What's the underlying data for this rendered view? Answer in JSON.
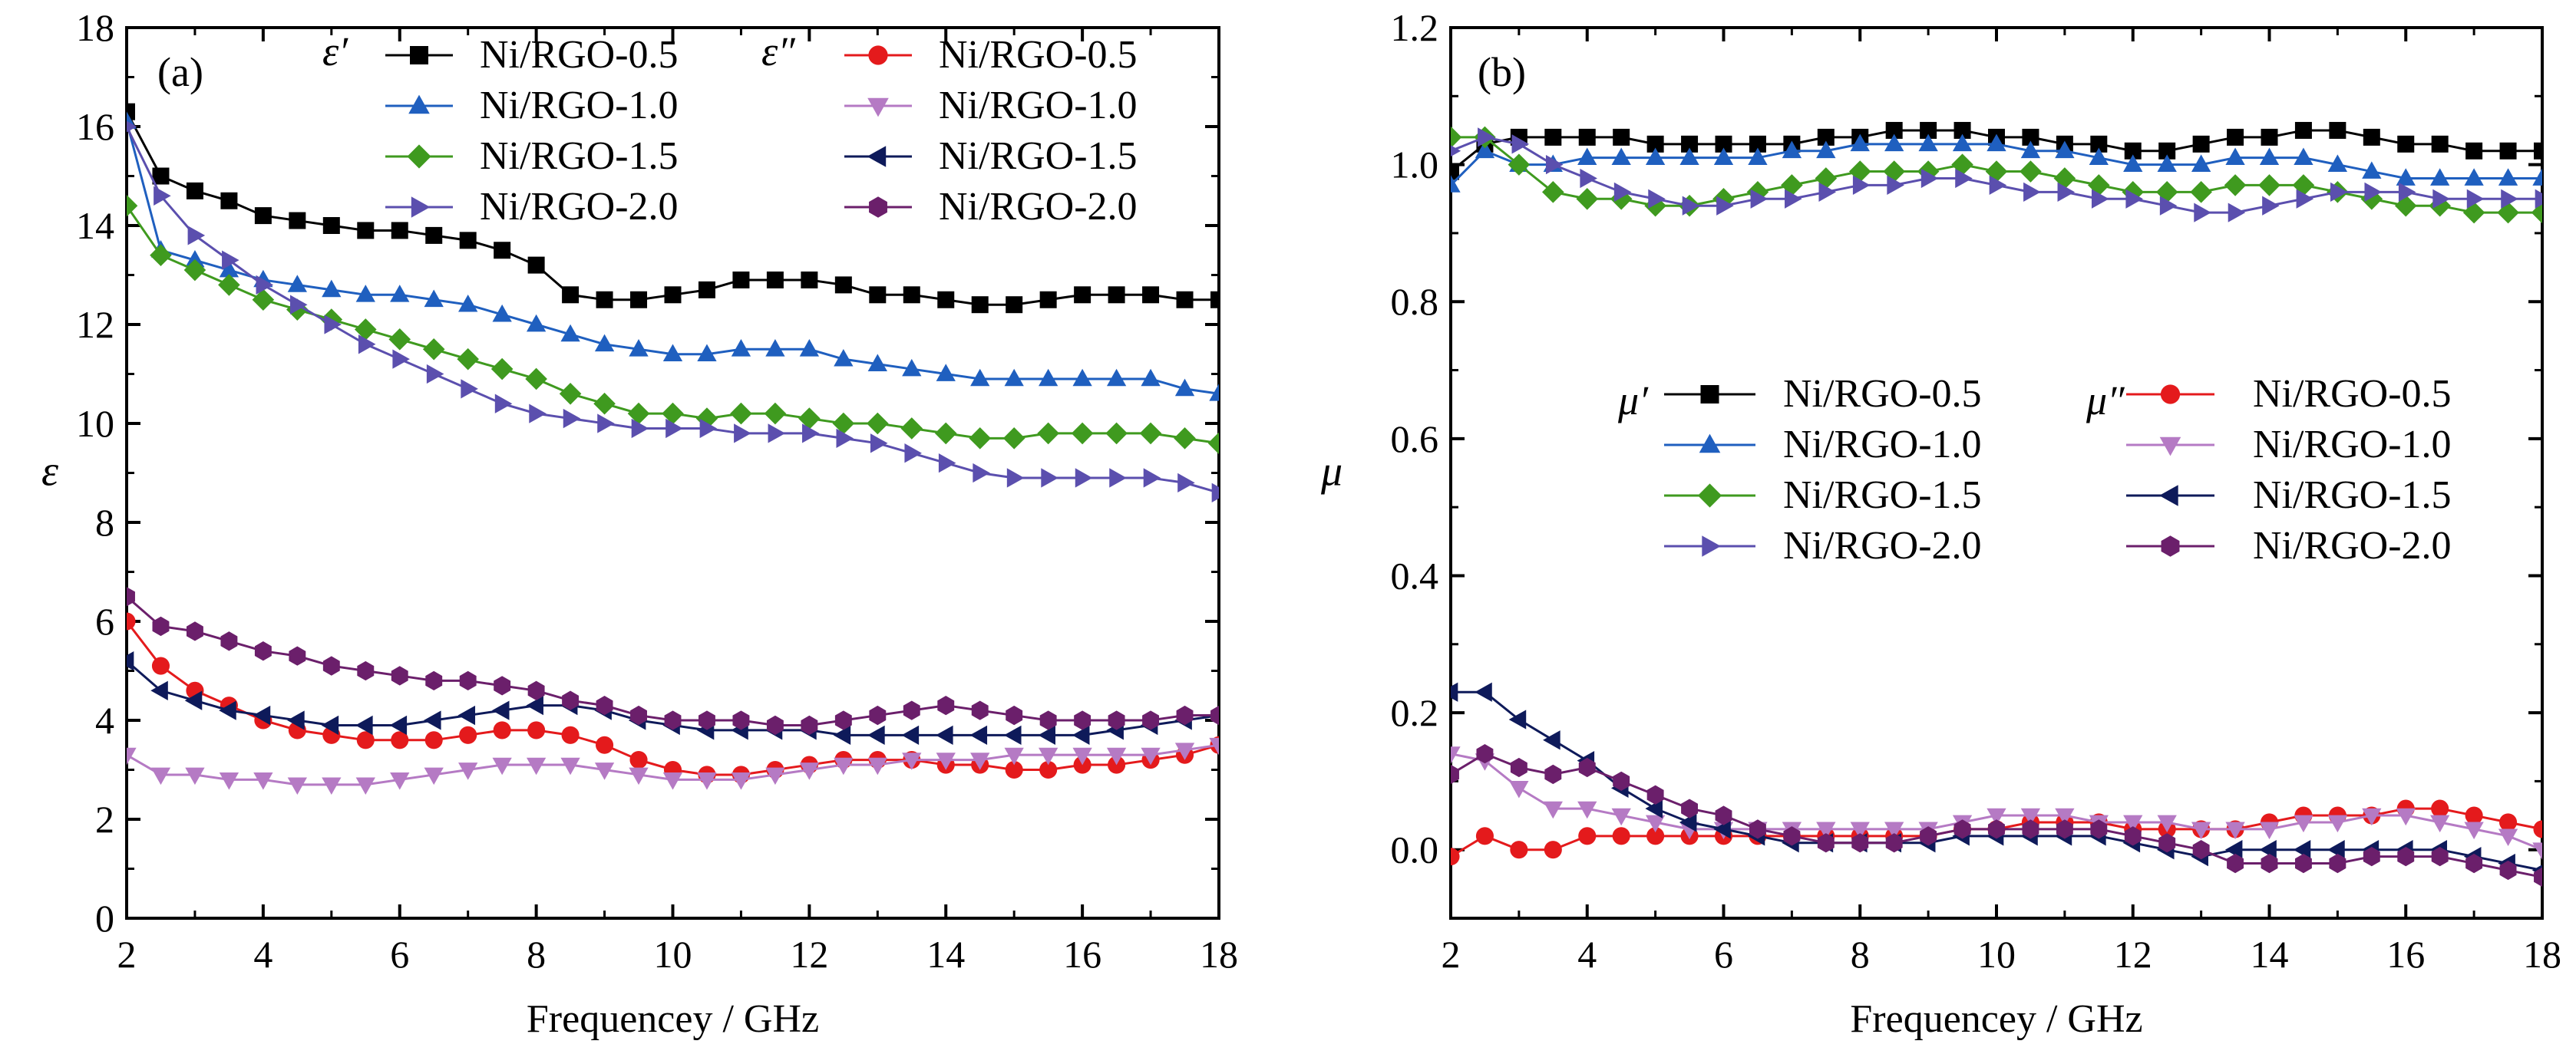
{
  "chart_data": [
    {
      "type": "line",
      "panel_label": "(a)",
      "xlabel": "Frequencey / GHz",
      "ylabel": "ε",
      "xlim": [
        2,
        18
      ],
      "ylim": [
        0,
        18
      ],
      "xticks": [
        2,
        4,
        6,
        8,
        10,
        12,
        14,
        16,
        18
      ],
      "yticks": [
        0,
        2,
        4,
        6,
        8,
        10,
        12,
        14,
        16,
        18
      ],
      "xtick_labels": [
        "2",
        "4",
        "6",
        "8",
        "10",
        "12",
        "14",
        "16",
        "18"
      ],
      "ytick_labels": [
        "0",
        "2",
        "4",
        "6",
        "8",
        "10",
        "12",
        "14",
        "16",
        "18"
      ],
      "legend_groups": [
        {
          "symbol": "ε′",
          "entries": [
            0,
            1,
            2,
            3
          ]
        },
        {
          "symbol": "ε″",
          "entries": [
            4,
            5,
            6,
            7
          ]
        }
      ],
      "x": [
        2.0,
        2.5,
        3.0,
        3.5,
        4.0,
        4.5,
        5.0,
        5.5,
        6.0,
        6.5,
        7.0,
        7.5,
        8.0,
        8.5,
        9.0,
        9.5,
        10.0,
        10.5,
        11.0,
        11.5,
        12.0,
        12.5,
        13.0,
        13.5,
        14.0,
        14.5,
        15.0,
        15.5,
        16.0,
        16.5,
        17.0,
        17.5,
        18.0
      ],
      "series": [
        {
          "name": "Ni/RGO-0.5",
          "marker": "square",
          "color": "#000000",
          "values": [
            16.3,
            15.0,
            14.7,
            14.5,
            14.2,
            14.1,
            14.0,
            13.9,
            13.9,
            13.8,
            13.7,
            13.5,
            13.2,
            12.6,
            12.5,
            12.5,
            12.6,
            12.7,
            12.9,
            12.9,
            12.9,
            12.8,
            12.6,
            12.6,
            12.5,
            12.4,
            12.4,
            12.5,
            12.6,
            12.6,
            12.6,
            12.5,
            12.5
          ]
        },
        {
          "name": "Ni/RGO-1.0",
          "marker": "triangle-up",
          "color": "#1f5fbf",
          "values": [
            16.1,
            13.5,
            13.3,
            13.1,
            12.9,
            12.8,
            12.7,
            12.6,
            12.6,
            12.5,
            12.4,
            12.2,
            12.0,
            11.8,
            11.6,
            11.5,
            11.4,
            11.4,
            11.5,
            11.5,
            11.5,
            11.3,
            11.2,
            11.1,
            11.0,
            10.9,
            10.9,
            10.9,
            10.9,
            10.9,
            10.9,
            10.7,
            10.6
          ]
        },
        {
          "name": "Ni/RGO-1.5",
          "marker": "diamond",
          "color": "#3f9a1f",
          "values": [
            14.4,
            13.4,
            13.1,
            12.8,
            12.5,
            12.3,
            12.1,
            11.9,
            11.7,
            11.5,
            11.3,
            11.1,
            10.9,
            10.6,
            10.4,
            10.2,
            10.2,
            10.1,
            10.2,
            10.2,
            10.1,
            10.0,
            10.0,
            9.9,
            9.8,
            9.7,
            9.7,
            9.8,
            9.8,
            9.8,
            9.8,
            9.7,
            9.6
          ]
        },
        {
          "name": "Ni/RGO-2.0",
          "marker": "triangle-right",
          "color": "#5b4fae",
          "values": [
            16.0,
            14.6,
            13.8,
            13.3,
            12.8,
            12.4,
            12.0,
            11.6,
            11.3,
            11.0,
            10.7,
            10.4,
            10.2,
            10.1,
            10.0,
            9.9,
            9.9,
            9.9,
            9.8,
            9.8,
            9.8,
            9.7,
            9.6,
            9.4,
            9.2,
            9.0,
            8.9,
            8.9,
            8.9,
            8.9,
            8.9,
            8.8,
            8.6
          ]
        },
        {
          "name": "Ni/RGO-0.5",
          "marker": "circle",
          "color": "#e41a1c",
          "values": [
            6.0,
            5.1,
            4.6,
            4.3,
            4.0,
            3.8,
            3.7,
            3.6,
            3.6,
            3.6,
            3.7,
            3.8,
            3.8,
            3.7,
            3.5,
            3.2,
            3.0,
            2.9,
            2.9,
            3.0,
            3.1,
            3.2,
            3.2,
            3.2,
            3.1,
            3.1,
            3.0,
            3.0,
            3.1,
            3.1,
            3.2,
            3.3,
            3.5
          ]
        },
        {
          "name": "Ni/RGO-1.0",
          "marker": "triangle-down",
          "color": "#b57ac4",
          "values": [
            3.3,
            2.9,
            2.9,
            2.8,
            2.8,
            2.7,
            2.7,
            2.7,
            2.8,
            2.9,
            3.0,
            3.1,
            3.1,
            3.1,
            3.0,
            2.9,
            2.8,
            2.8,
            2.8,
            2.9,
            3.0,
            3.1,
            3.1,
            3.2,
            3.2,
            3.2,
            3.3,
            3.3,
            3.3,
            3.3,
            3.3,
            3.4,
            3.5
          ]
        },
        {
          "name": "Ni/RGO-1.5",
          "marker": "triangle-left",
          "color": "#0e1a5a",
          "values": [
            5.2,
            4.6,
            4.4,
            4.2,
            4.1,
            4.0,
            3.9,
            3.9,
            3.9,
            4.0,
            4.1,
            4.2,
            4.3,
            4.3,
            4.2,
            4.0,
            3.9,
            3.8,
            3.8,
            3.8,
            3.8,
            3.7,
            3.7,
            3.7,
            3.7,
            3.7,
            3.7,
            3.7,
            3.7,
            3.8,
            3.9,
            4.0,
            4.1
          ]
        },
        {
          "name": "Ni/RGO-2.0",
          "marker": "hexagon",
          "color": "#6b1f6b",
          "values": [
            6.5,
            5.9,
            5.8,
            5.6,
            5.4,
            5.3,
            5.1,
            5.0,
            4.9,
            4.8,
            4.8,
            4.7,
            4.6,
            4.4,
            4.3,
            4.1,
            4.0,
            4.0,
            4.0,
            3.9,
            3.9,
            4.0,
            4.1,
            4.2,
            4.3,
            4.2,
            4.1,
            4.0,
            4.0,
            4.0,
            4.0,
            4.1,
            4.1
          ]
        }
      ]
    },
    {
      "type": "line",
      "panel_label": "(b)",
      "xlabel": "Frequencey / GHz",
      "ylabel": "μ",
      "xlim": [
        2,
        18
      ],
      "ylim": [
        -0.1,
        1.2
      ],
      "xticks": [
        2,
        4,
        6,
        8,
        10,
        12,
        14,
        16,
        18
      ],
      "yticks": [
        0,
        0.2,
        0.4,
        0.6,
        0.8,
        1.0,
        1.2
      ],
      "xtick_labels": [
        "2",
        "4",
        "6",
        "8",
        "10",
        "12",
        "14",
        "16",
        "18"
      ],
      "ytick_labels": [
        "0.0",
        "0.2",
        "0.4",
        "0.6",
        "0.8",
        "1.0",
        "1.2"
      ],
      "legend_groups": [
        {
          "symbol": "μ′",
          "entries": [
            0,
            1,
            2,
            3
          ]
        },
        {
          "symbol": "μ″",
          "entries": [
            4,
            5,
            6,
            7
          ]
        }
      ],
      "x": [
        2.0,
        2.5,
        3.0,
        3.5,
        4.0,
        4.5,
        5.0,
        5.5,
        6.0,
        6.5,
        7.0,
        7.5,
        8.0,
        8.5,
        9.0,
        9.5,
        10.0,
        10.5,
        11.0,
        11.5,
        12.0,
        12.5,
        13.0,
        13.5,
        14.0,
        14.5,
        15.0,
        15.5,
        16.0,
        16.5,
        17.0,
        17.5,
        18.0
      ],
      "series": [
        {
          "name": "Ni/RGO-0.5",
          "marker": "square",
          "color": "#000000",
          "values": [
            0.99,
            1.03,
            1.04,
            1.04,
            1.04,
            1.04,
            1.03,
            1.03,
            1.03,
            1.03,
            1.03,
            1.04,
            1.04,
            1.05,
            1.05,
            1.05,
            1.04,
            1.04,
            1.03,
            1.03,
            1.02,
            1.02,
            1.03,
            1.04,
            1.04,
            1.05,
            1.05,
            1.04,
            1.03,
            1.03,
            1.02,
            1.02,
            1.02
          ]
        },
        {
          "name": "Ni/RGO-1.0",
          "marker": "triangle-up",
          "color": "#1f5fbf",
          "values": [
            0.97,
            1.02,
            1.0,
            1.0,
            1.01,
            1.01,
            1.01,
            1.01,
            1.01,
            1.01,
            1.02,
            1.02,
            1.03,
            1.03,
            1.03,
            1.03,
            1.03,
            1.02,
            1.02,
            1.01,
            1.0,
            1.0,
            1.0,
            1.01,
            1.01,
            1.01,
            1.0,
            0.99,
            0.98,
            0.98,
            0.98,
            0.98,
            0.98
          ]
        },
        {
          "name": "Ni/RGO-1.5",
          "marker": "diamond",
          "color": "#3f9a1f",
          "values": [
            1.04,
            1.04,
            1.0,
            0.96,
            0.95,
            0.95,
            0.94,
            0.94,
            0.95,
            0.96,
            0.97,
            0.98,
            0.99,
            0.99,
            0.99,
            1.0,
            0.99,
            0.99,
            0.98,
            0.97,
            0.96,
            0.96,
            0.96,
            0.97,
            0.97,
            0.97,
            0.96,
            0.95,
            0.94,
            0.94,
            0.93,
            0.93,
            0.93
          ]
        },
        {
          "name": "Ni/RGO-2.0",
          "marker": "triangle-right",
          "color": "#5b4fae",
          "values": [
            1.02,
            1.04,
            1.03,
            1.0,
            0.98,
            0.96,
            0.95,
            0.94,
            0.94,
            0.95,
            0.95,
            0.96,
            0.97,
            0.97,
            0.98,
            0.98,
            0.97,
            0.96,
            0.96,
            0.95,
            0.95,
            0.94,
            0.93,
            0.93,
            0.94,
            0.95,
            0.96,
            0.96,
            0.96,
            0.95,
            0.95,
            0.95,
            0.95
          ]
        },
        {
          "name": "Ni/RGO-0.5",
          "marker": "circle",
          "color": "#e41a1c",
          "values": [
            -0.01,
            0.02,
            0.0,
            0.0,
            0.02,
            0.02,
            0.02,
            0.02,
            0.02,
            0.02,
            0.02,
            0.02,
            0.02,
            0.02,
            0.02,
            0.03,
            0.03,
            0.04,
            0.04,
            0.04,
            0.03,
            0.03,
            0.03,
            0.03,
            0.04,
            0.05,
            0.05,
            0.05,
            0.06,
            0.06,
            0.05,
            0.04,
            0.03
          ]
        },
        {
          "name": "Ni/RGO-1.0",
          "marker": "triangle-down",
          "color": "#b57ac4",
          "values": [
            0.14,
            0.13,
            0.09,
            0.06,
            0.06,
            0.05,
            0.04,
            0.03,
            0.03,
            0.03,
            0.03,
            0.03,
            0.03,
            0.03,
            0.03,
            0.04,
            0.05,
            0.05,
            0.05,
            0.04,
            0.04,
            0.04,
            0.03,
            0.03,
            0.03,
            0.04,
            0.04,
            0.05,
            0.05,
            0.04,
            0.03,
            0.02,
            0.0
          ]
        },
        {
          "name": "Ni/RGO-1.5",
          "marker": "triangle-left",
          "color": "#0e1a5a",
          "values": [
            0.23,
            0.23,
            0.19,
            0.16,
            0.13,
            0.09,
            0.06,
            0.04,
            0.03,
            0.02,
            0.01,
            0.01,
            0.01,
            0.01,
            0.01,
            0.02,
            0.02,
            0.02,
            0.02,
            0.02,
            0.01,
            0.0,
            -0.01,
            0.0,
            0.0,
            0.0,
            0.0,
            0.0,
            0.0,
            0.0,
            -0.01,
            -0.02,
            -0.03
          ]
        },
        {
          "name": "Ni/RGO-2.0",
          "marker": "hexagon",
          "color": "#6b1f6b",
          "values": [
            0.11,
            0.14,
            0.12,
            0.11,
            0.12,
            0.1,
            0.08,
            0.06,
            0.05,
            0.03,
            0.02,
            0.01,
            0.01,
            0.01,
            0.02,
            0.03,
            0.03,
            0.03,
            0.03,
            0.03,
            0.02,
            0.01,
            0.0,
            -0.02,
            -0.02,
            -0.02,
            -0.02,
            -0.01,
            -0.01,
            -0.01,
            -0.02,
            -0.03,
            -0.04
          ]
        }
      ]
    }
  ]
}
